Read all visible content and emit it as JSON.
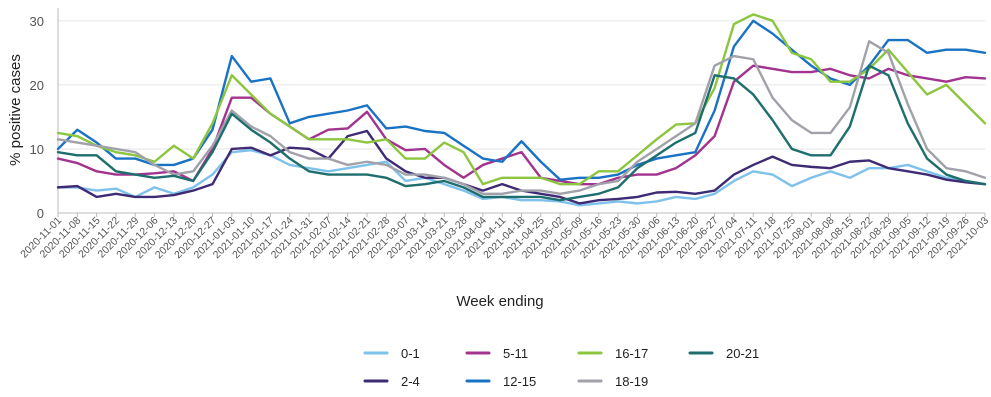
{
  "chart_data": {
    "type": "line",
    "xlabel": "Week ending",
    "ylabel": "% positive cases",
    "ylim": [
      0,
      32
    ],
    "yticks": [
      0,
      10,
      20,
      30
    ],
    "grid": "horizontal",
    "legend_position": "bottom",
    "categories": [
      "2020-11-01",
      "2020-11-08",
      "2020-11-15",
      "2020-11-22",
      "2020-11-29",
      "2020-12-06",
      "2020-12-13",
      "2020-12-20",
      "2020-12-27",
      "2021-01-03",
      "2021-01-10",
      "2021-01-17",
      "2021-01-24",
      "2021-01-31",
      "2021-02-07",
      "2021-02-14",
      "2021-02-21",
      "2021-02-28",
      "2021-03-07",
      "2021-03-14",
      "2021-03-21",
      "2021-03-28",
      "2021-04-04",
      "2021-04-11",
      "2021-04-18",
      "2021-04-25",
      "2021-05-02",
      "2021-05-09",
      "2021-05-16",
      "2021-05-23",
      "2021-05-30",
      "2021-06-06",
      "2021-06-13",
      "2021-06-20",
      "2021-06-27",
      "2021-07-04",
      "2021-07-11",
      "2021-07-18",
      "2021-07-25",
      "2021-08-01",
      "2021-08-08",
      "2021-08-15",
      "2021-08-22",
      "2021-08-29",
      "2021-09-05",
      "2021-09-12",
      "2021-09-19",
      "2021-09-26",
      "2021-10-03"
    ],
    "series": [
      {
        "name": "0-1",
        "color": "#7ec1ea",
        "values": [
          4.0,
          4.0,
          3.5,
          3.8,
          2.5,
          4.0,
          3.0,
          4.0,
          6.0,
          9.5,
          9.8,
          9.0,
          7.5,
          7.0,
          6.5,
          7.0,
          7.5,
          8.0,
          5.0,
          5.5,
          4.5,
          3.5,
          2.2,
          2.5,
          2.0,
          2.0,
          1.8,
          1.2,
          1.5,
          1.8,
          1.5,
          1.8,
          2.5,
          2.2,
          3.0,
          5.0,
          6.5,
          6.0,
          4.2,
          5.5,
          6.5,
          5.5,
          7.0,
          7.0,
          7.5,
          6.5,
          5.5,
          5.0,
          4.5
        ]
      },
      {
        "name": "2-4",
        "color": "#3e2b74",
        "values": [
          4.0,
          4.2,
          2.5,
          3.0,
          2.5,
          2.5,
          2.8,
          3.5,
          4.5,
          10.0,
          10.2,
          9.0,
          10.2,
          10.0,
          8.5,
          12.0,
          12.8,
          8.5,
          6.5,
          5.5,
          5.5,
          4.5,
          3.5,
          4.5,
          3.5,
          3.0,
          2.5,
          1.5,
          2.0,
          2.2,
          2.5,
          3.2,
          3.3,
          3.0,
          3.5,
          6.0,
          7.5,
          8.8,
          7.5,
          7.2,
          7.0,
          8.0,
          8.2,
          7.0,
          6.5,
          6.0,
          5.2,
          4.8,
          4.5
        ]
      },
      {
        "name": "5-11",
        "color": "#a2338f",
        "values": [
          8.5,
          7.8,
          6.5,
          6.0,
          6.0,
          6.2,
          6.5,
          5.0,
          10.0,
          18.0,
          18.0,
          15.5,
          13.5,
          11.5,
          13.0,
          13.2,
          15.8,
          11.5,
          9.8,
          10.0,
          7.5,
          5.5,
          7.5,
          8.5,
          9.5,
          5.5,
          5.0,
          4.5,
          4.5,
          5.5,
          6.0,
          6.0,
          7.0,
          9.0,
          12.0,
          20.5,
          23.0,
          22.5,
          22.0,
          22.0,
          22.5,
          21.5,
          21.0,
          22.5,
          21.5,
          21.0,
          20.5,
          21.2,
          21.0
        ]
      },
      {
        "name": "12-15",
        "color": "#1a72c4",
        "values": [
          10.0,
          13.0,
          11.0,
          8.5,
          8.5,
          7.5,
          7.5,
          8.5,
          13.0,
          24.5,
          20.5,
          21.0,
          14.0,
          15.0,
          15.5,
          16.0,
          16.8,
          13.2,
          13.5,
          12.8,
          12.5,
          10.5,
          8.5,
          8.0,
          11.2,
          8.0,
          5.2,
          5.5,
          5.5,
          6.0,
          7.5,
          8.5,
          9.0,
          9.5,
          16.0,
          26.0,
          30.0,
          28.0,
          25.5,
          23.0,
          21.0,
          20.0,
          23.0,
          27.0,
          27.0,
          25.0,
          25.5,
          25.5,
          25.0
        ]
      },
      {
        "name": "16-17",
        "color": "#8cc63f",
        "values": [
          12.5,
          12.0,
          10.5,
          9.5,
          9.0,
          8.0,
          10.5,
          8.5,
          14.0,
          21.5,
          18.5,
          15.5,
          13.5,
          11.5,
          11.5,
          11.5,
          11.0,
          11.5,
          8.5,
          8.5,
          11.0,
          9.5,
          4.5,
          5.5,
          5.5,
          5.5,
          4.5,
          4.5,
          6.5,
          6.5,
          9.0,
          11.5,
          13.8,
          14.0,
          19.5,
          29.5,
          31.0,
          30.0,
          25.0,
          24.0,
          20.5,
          20.5,
          22.5,
          25.5,
          22.0,
          18.5,
          20.0,
          17.0,
          14.0
        ]
      },
      {
        "name": "18-19",
        "color": "#a1a1aa",
        "values": [
          11.5,
          11.0,
          10.5,
          10.0,
          9.5,
          7.5,
          6.0,
          6.5,
          10.5,
          16.0,
          13.5,
          12.0,
          9.5,
          8.5,
          8.5,
          7.5,
          8.0,
          7.5,
          6.0,
          6.0,
          5.5,
          4.5,
          3.0,
          3.0,
          3.5,
          3.5,
          3.0,
          3.5,
          4.5,
          5.0,
          8.0,
          10.0,
          12.0,
          14.0,
          23.0,
          24.5,
          24.0,
          18.0,
          14.5,
          12.5,
          12.5,
          16.5,
          26.8,
          25.0,
          17.0,
          10.0,
          7.0,
          6.5,
          5.5
        ]
      },
      {
        "name": "20-21",
        "color": "#1f6e6e",
        "values": [
          9.5,
          9.0,
          9.0,
          6.5,
          6.0,
          5.5,
          5.8,
          5.0,
          9.5,
          15.5,
          13.0,
          11.0,
          8.5,
          6.5,
          6.0,
          6.0,
          6.0,
          5.5,
          4.2,
          4.5,
          5.0,
          4.0,
          2.5,
          2.5,
          2.5,
          2.5,
          2.0,
          2.5,
          3.0,
          4.0,
          7.0,
          9.0,
          11.0,
          12.5,
          21.5,
          21.0,
          18.5,
          14.5,
          10.0,
          9.0,
          9.0,
          13.5,
          23.0,
          21.5,
          14.0,
          8.5,
          6.0,
          5.0,
          4.5
        ]
      }
    ]
  },
  "legend": {
    "rows": [
      [
        "0-1",
        "5-11",
        "16-17",
        "20-21"
      ],
      [
        "2-4",
        "12-15",
        "18-19"
      ]
    ]
  }
}
